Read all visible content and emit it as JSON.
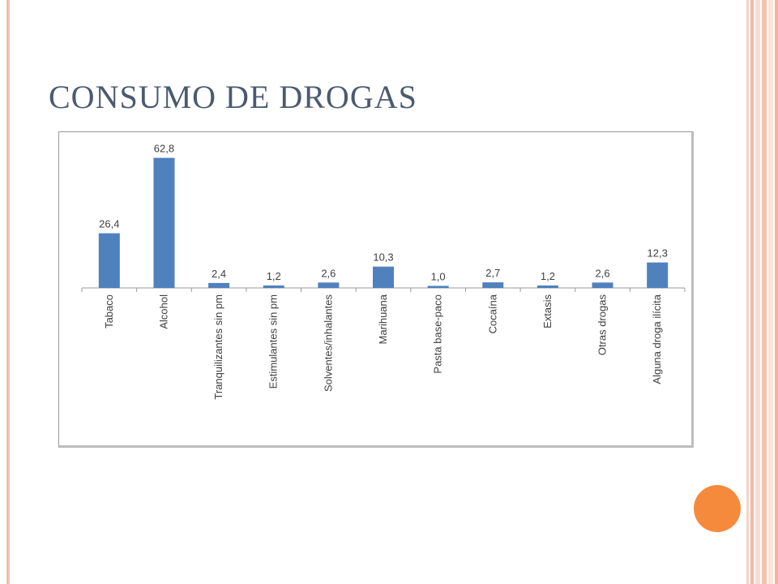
{
  "slide": {
    "title": "CONSUMO DE DROGAS",
    "accent_color": "#f58a3d",
    "title_color": "#4a5a70"
  },
  "chart_data": {
    "type": "bar",
    "title": "",
    "xlabel": "",
    "ylabel": "",
    "categories": [
      "Tabaco",
      "Alcohol",
      "Tranquilizantes sin pm",
      "Estimulantes sin pm",
      "Solventes/inhalantes",
      "Marihuana",
      "Pasta base-paco",
      "Cocaína",
      "Extasis",
      "Otras drogas",
      "Alguna droga ilícita"
    ],
    "values": [
      26.4,
      62.8,
      2.4,
      1.2,
      2.6,
      10.3,
      1.0,
      2.7,
      1.2,
      2.6,
      12.3
    ],
    "value_labels": [
      "26,4",
      "62,8",
      "2,4",
      "1,2",
      "2,6",
      "10,3",
      "1,0",
      "2,7",
      "1,2",
      "2,6",
      "12,3"
    ],
    "ylim": [
      0,
      65
    ],
    "grid": false,
    "legend": "none",
    "bar_color": "#4f81bd"
  }
}
